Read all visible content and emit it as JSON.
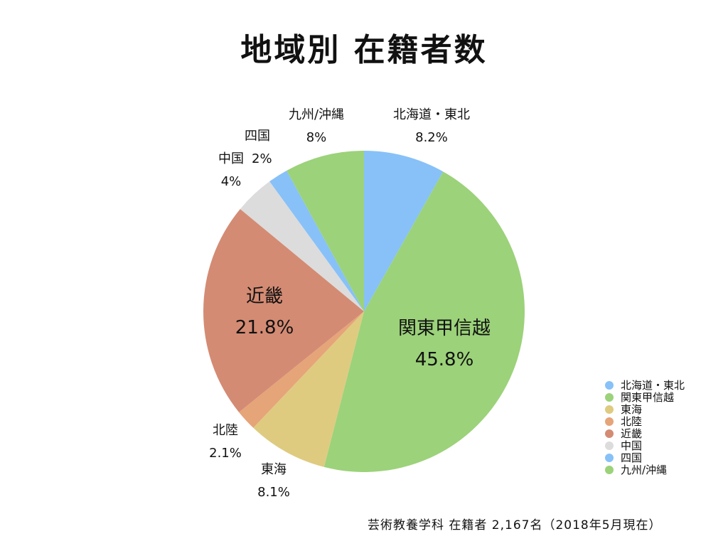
{
  "chart_data": {
    "type": "pie",
    "title": "地域別 在籍者数",
    "unit": "%",
    "slices": [
      {
        "label": "北海道・東北",
        "value": 8.2,
        "value_label": "8.2%",
        "color": "#87c1f8"
      },
      {
        "label": "関東甲信越",
        "value": 45.8,
        "value_label": "45.8%",
        "color": "#9cd27a"
      },
      {
        "label": "東海",
        "value": 8.1,
        "value_label": "8.1%",
        "color": "#decb80"
      },
      {
        "label": "北陸",
        "value": 2.1,
        "value_label": "2.1%",
        "color": "#e6a479"
      },
      {
        "label": "近畿",
        "value": 21.8,
        "value_label": "21.8%",
        "color": "#d48b73"
      },
      {
        "label": "中国",
        "value": 4,
        "value_label": "4%",
        "color": "#dcdcdc"
      },
      {
        "label": "四国",
        "value": 2,
        "value_label": "2%",
        "color": "#87c1f8"
      },
      {
        "label": "九州/沖縄",
        "value": 8,
        "value_label": "8%",
        "color": "#9cd27a"
      }
    ],
    "legend_position": "bottom-right"
  },
  "footnote": "芸術教養学科 在籍者 2,167名（2018年5月現在）"
}
